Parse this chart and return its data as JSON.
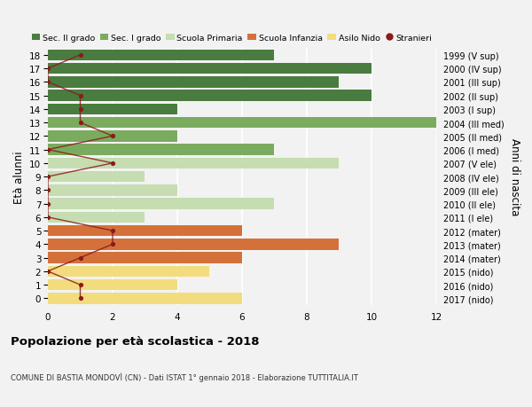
{
  "ages": [
    18,
    17,
    16,
    15,
    14,
    13,
    12,
    11,
    10,
    9,
    8,
    7,
    6,
    5,
    4,
    3,
    2,
    1,
    0
  ],
  "right_labels": [
    "1999 (V sup)",
    "2000 (IV sup)",
    "2001 (III sup)",
    "2002 (II sup)",
    "2003 (I sup)",
    "2004 (III med)",
    "2005 (II med)",
    "2006 (I med)",
    "2007 (V ele)",
    "2008 (IV ele)",
    "2009 (III ele)",
    "2010 (II ele)",
    "2011 (I ele)",
    "2012 (mater)",
    "2013 (mater)",
    "2014 (mater)",
    "2015 (nido)",
    "2016 (nido)",
    "2017 (nido)"
  ],
  "bar_values": [
    7,
    10,
    9,
    10,
    4,
    12,
    4,
    7,
    9,
    3,
    4,
    7,
    3,
    6,
    9,
    6,
    5,
    4,
    6
  ],
  "bar_colors": [
    "#4a7c3f",
    "#4a7c3f",
    "#4a7c3f",
    "#4a7c3f",
    "#4a7c3f",
    "#7aab5e",
    "#7aab5e",
    "#7aab5e",
    "#c5ddb0",
    "#c5ddb0",
    "#c5ddb0",
    "#c5ddb0",
    "#c5ddb0",
    "#d4713a",
    "#d4713a",
    "#d4713a",
    "#f2dc7e",
    "#f2dc7e",
    "#f2dc7e"
  ],
  "stranieri_values": [
    1,
    0,
    0,
    1,
    1,
    1,
    2,
    0,
    2,
    0,
    0,
    0,
    0,
    2,
    2,
    1,
    0,
    1,
    1
  ],
  "stranieri_color": "#8b1a1a",
  "legend_labels": [
    "Sec. II grado",
    "Sec. I grado",
    "Scuola Primaria",
    "Scuola Infanzia",
    "Asilo Nido",
    "Stranieri"
  ],
  "legend_colors": [
    "#4a7c3f",
    "#7aab5e",
    "#c5ddb0",
    "#d4713a",
    "#f2dc7e",
    "#8b1a1a"
  ],
  "title": "Popolazione per età scolastica - 2018",
  "subtitle": "COMUNE DI BASTIA MONDOVÌ (CN) - Dati ISTAT 1° gennaio 2018 - Elaborazione TUTTITALIA.IT",
  "ylabel": "Età alunni",
  "ylabel2": "Anni di nascita",
  "xlim": [
    0,
    12
  ],
  "background_color": "#f2f2f2",
  "grid_color": "#ffffff"
}
